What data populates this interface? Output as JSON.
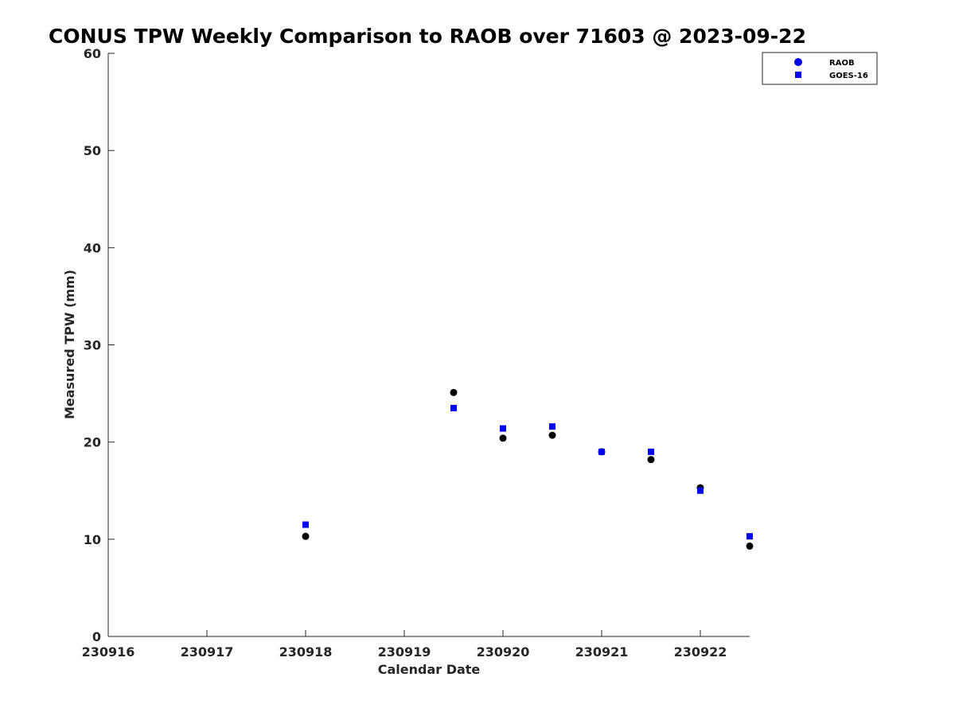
{
  "chart_data": {
    "type": "scatter",
    "title": "CONUS TPW Weekly Comparison to RAOB over 71603 @ 2023-09-22",
    "xlabel": "Calendar Date",
    "ylabel": "Measured TPW (mm)",
    "xlim": [
      0,
      6.5
    ],
    "ylim": [
      0,
      60
    ],
    "x_ticks": [
      0,
      1,
      2,
      3,
      4,
      5,
      6
    ],
    "x_tick_labels": [
      "230916",
      "230917",
      "230918",
      "230919",
      "230920",
      "230921",
      "230922"
    ],
    "y_ticks": [
      0,
      10,
      20,
      30,
      40,
      50,
      60
    ],
    "y_tick_labels": [
      "0",
      "10",
      "20",
      "30",
      "40",
      "50",
      "60"
    ],
    "grid": false,
    "legend_position": "top-right",
    "series": [
      {
        "name": "RAOB",
        "marker": "circle",
        "legend_color": "#0000ee",
        "color": "#000000",
        "x": [
          2.0,
          3.5,
          4.0,
          4.5,
          5.0,
          5.5,
          6.0,
          6.5
        ],
        "y": [
          10.3,
          25.1,
          20.4,
          20.7,
          19.0,
          18.2,
          15.3,
          9.3
        ]
      },
      {
        "name": "GOES-16",
        "marker": "square",
        "legend_color": "#0000ee",
        "color": "#0000ee",
        "x": [
          2.0,
          3.5,
          4.0,
          4.5,
          5.0,
          5.5,
          6.0,
          6.5
        ],
        "y": [
          11.5,
          23.5,
          21.4,
          21.6,
          19.0,
          19.0,
          15.0,
          10.3
        ]
      }
    ]
  }
}
